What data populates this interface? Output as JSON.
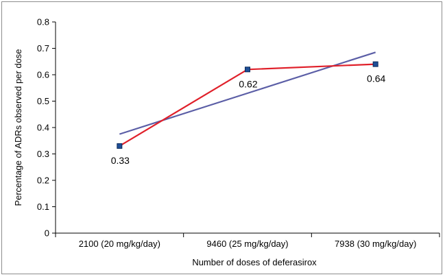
{
  "chart_data": {
    "type": "line",
    "categories": [
      "2100 (20 mg/kg/day)",
      "9460 (25 mg/kg/day)",
      "7938 (30 mg/kg/day)"
    ],
    "series": [
      {
        "values": [
          0.33,
          0.62,
          0.64
        ],
        "color": "#e0202a",
        "marker": "square",
        "marker_color": "#1f4e96",
        "data_labels": [
          "0.33",
          "0.62",
          "0.64"
        ]
      },
      {
        "trendline": "linear",
        "values": [
          0.375,
          0.53,
          0.685
        ],
        "color": "#5b5ea6"
      }
    ],
    "title": "",
    "xlabel": "Number of doses of deferasirox",
    "ylabel": "Percentage of ADRs observed per dose",
    "ylim": [
      0,
      0.8
    ],
    "yticks": [
      "0",
      "0.1",
      "0.2",
      "0.3",
      "0.4",
      "0.5",
      "0.6",
      "0.7",
      "0.8"
    ],
    "grid": false,
    "legend": "none"
  }
}
